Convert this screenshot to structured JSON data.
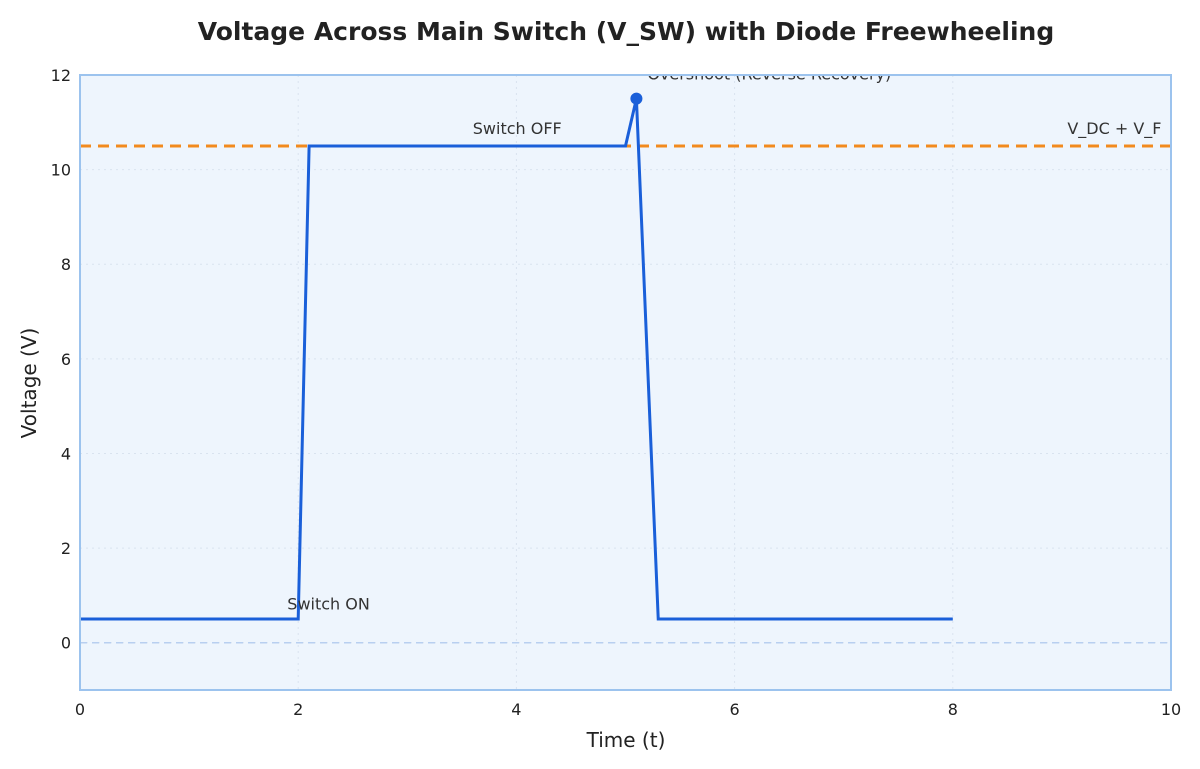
{
  "chart_data": {
    "type": "line",
    "title": "Voltage Across Main Switch (V_SW) with Diode Freewheeling",
    "xlabel": "Time (t)",
    "ylabel": "Voltage (V)",
    "xlim": [
      0,
      10
    ],
    "ylim": [
      -1,
      12
    ],
    "x_ticks": [
      0,
      2,
      4,
      6,
      8,
      10
    ],
    "y_ticks": [
      0,
      2,
      4,
      6,
      8,
      10,
      12
    ],
    "grid": true,
    "series": [
      {
        "type": "line",
        "x": [
          0,
          2,
          2.1,
          5,
          5.1,
          5.3,
          8
        ],
        "y": [
          0.5,
          0.5,
          10.5,
          10.5,
          11.5,
          0.5,
          0.5
        ],
        "color": "#1a5fd9"
      }
    ],
    "reference_lines": [
      {
        "orientation": "horizontal",
        "y": 10.5,
        "label": "V_DC + V_F",
        "style": "dashed",
        "color": "#f28a1e"
      },
      {
        "orientation": "horizontal",
        "y": 0,
        "style": "dashed",
        "color": "#b8cff0"
      }
    ],
    "markers": [
      {
        "x": 5.1,
        "y": 11.5,
        "color": "#1a5fd9"
      }
    ],
    "annotations": [
      {
        "text": "Switch ON",
        "x": 1.9,
        "y": 0.7
      },
      {
        "text": "Switch OFF",
        "x": 3.6,
        "y": 10.75
      },
      {
        "text": "Overshoot (Reverse Recovery)",
        "x": 5.2,
        "y": 11.9
      },
      {
        "text": "V_DC + V_F",
        "x": 9.05,
        "y": 10.75
      }
    ],
    "colors": {
      "plot_background": "#eef5fd",
      "frame": "#9cc3ee",
      "grid": "#d9e3ef"
    }
  }
}
